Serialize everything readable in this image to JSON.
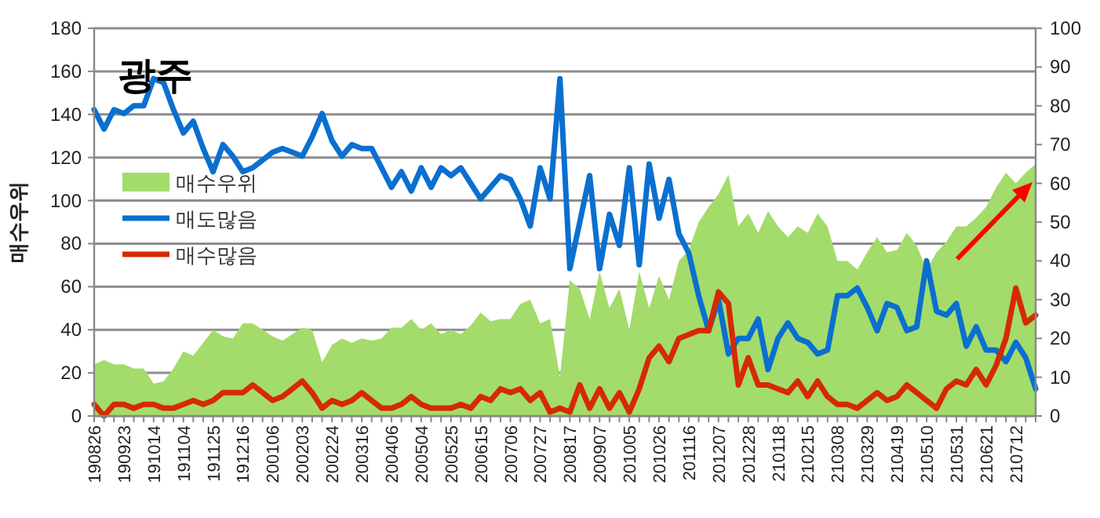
{
  "chart_data": {
    "type": "area",
    "title": "광주",
    "ylabel": "매수우위",
    "categories": [
      "190826",
      null,
      null,
      "190923",
      null,
      null,
      "191014",
      null,
      null,
      "191104",
      null,
      null,
      "191125",
      null,
      null,
      "191216",
      null,
      null,
      "200106",
      null,
      null,
      "200203",
      null,
      null,
      "200224",
      null,
      null,
      "200316",
      null,
      null,
      "200406",
      null,
      null,
      "200504",
      null,
      null,
      "200525",
      null,
      null,
      "200615",
      null,
      null,
      "200706",
      null,
      null,
      "200727",
      null,
      null,
      "200817",
      null,
      null,
      "200907",
      null,
      null,
      "201005",
      null,
      null,
      "201026",
      null,
      null,
      "201116",
      null,
      null,
      "201207",
      null,
      null,
      "201228",
      null,
      null,
      "210118",
      null,
      null,
      "210215",
      null,
      null,
      "210308",
      null,
      null,
      "210329",
      null,
      null,
      "210419",
      null,
      null,
      "210510",
      null,
      null,
      "210531",
      null,
      null,
      "210621",
      null,
      null,
      "210712",
      null,
      null
    ],
    "series": [
      {
        "name": "매수우위",
        "color": "#a3dc6a",
        "values": [
          24,
          26,
          24,
          24,
          22,
          22,
          15,
          16,
          22,
          30,
          28,
          34,
          40,
          37,
          36,
          43,
          43,
          40,
          37,
          35,
          38,
          41,
          40,
          25,
          33,
          36,
          34,
          36,
          35,
          36,
          41,
          41,
          45,
          40,
          43,
          38,
          40,
          38,
          42,
          48,
          44,
          45,
          45,
          52,
          54,
          43,
          45,
          18,
          63,
          59,
          45,
          67,
          50,
          59,
          40,
          67,
          50,
          65,
          54,
          72,
          77,
          90,
          97,
          103,
          112,
          88,
          94,
          85,
          95,
          88,
          83,
          88,
          85,
          94,
          88,
          72,
          72,
          68,
          76,
          83,
          76,
          77,
          85,
          79,
          68,
          76,
          81,
          88,
          88,
          92,
          97,
          106,
          113,
          108,
          113,
          117
        ]
      },
      {
        "name": "매도많음",
        "type": "line",
        "axis": "y2",
        "color": "#0a6fd0",
        "values": [
          79,
          74,
          79,
          78,
          80,
          80,
          87,
          86,
          79,
          73,
          76,
          69,
          63,
          70,
          67,
          63,
          64,
          66,
          68,
          69,
          68,
          67,
          72,
          78,
          71,
          67,
          70,
          69,
          69,
          64,
          59,
          63,
          58,
          64,
          59,
          64,
          62,
          64,
          60,
          56,
          59,
          62,
          61,
          56,
          49,
          64,
          56,
          87,
          38,
          50,
          62,
          38,
          52,
          44,
          64,
          39,
          65,
          51,
          61,
          47,
          42,
          31,
          22,
          30,
          16,
          20,
          20,
          25,
          12,
          20,
          24,
          20,
          19,
          16,
          17,
          31,
          31,
          33,
          28,
          22,
          29,
          28,
          22,
          23,
          40,
          27,
          26,
          29,
          18,
          23,
          17,
          17,
          14,
          19,
          15,
          7
        ]
      },
      {
        "name": "매수많음",
        "type": "line",
        "axis": "y2",
        "color": "#d62a00",
        "values": [
          3,
          0,
          3,
          3,
          2,
          3,
          3,
          2,
          2,
          3,
          4,
          3,
          4,
          6,
          6,
          6,
          8,
          6,
          4,
          5,
          7,
          9,
          6,
          2,
          4,
          3,
          4,
          6,
          4,
          2,
          2,
          3,
          5,
          3,
          2,
          2,
          2,
          3,
          2,
          5,
          4,
          7,
          6,
          7,
          4,
          6,
          1,
          2,
          1,
          8,
          2,
          7,
          2,
          6,
          1,
          7,
          15,
          18,
          14,
          20,
          21,
          22,
          22,
          32,
          29,
          8,
          15,
          8,
          8,
          7,
          6,
          9,
          5,
          9,
          5,
          3,
          3,
          2,
          4,
          6,
          4,
          5,
          8,
          6,
          4,
          2,
          7,
          9,
          8,
          12,
          8,
          13,
          20,
          33,
          24,
          26
        ]
      }
    ],
    "ylim": [
      0,
      180
    ],
    "yticks": [
      0,
      20,
      40,
      60,
      80,
      100,
      120,
      140,
      160,
      180
    ],
    "y2lim": [
      0,
      100
    ],
    "y2ticks": [
      0,
      10,
      20,
      30,
      40,
      50,
      60,
      70,
      80,
      90,
      100
    ],
    "grid": "y",
    "legend": "top left"
  }
}
